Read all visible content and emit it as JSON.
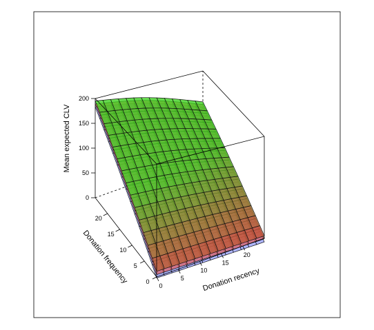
{
  "chart_data": {
    "type": "surface3d",
    "title": "",
    "xlabel": "Donation recency",
    "ylabel": "Donation frequency",
    "zlabel": "Mean expected CLV",
    "xlim": [
      0,
      25
    ],
    "ylim": [
      0,
      25
    ],
    "zlim": [
      0,
      200
    ],
    "x_ticks": [
      0,
      5,
      10,
      15,
      20
    ],
    "y_ticks": [
      0,
      5,
      10,
      15,
      20
    ],
    "z_ticks": [
      0,
      50,
      100,
      150,
      200
    ],
    "grid": true,
    "corner_values": {
      "recency_0_frequency_0": 10,
      "recency_25_frequency_0": 5,
      "recency_0_frequency_25": 195,
      "recency_25_frequency_25": 130
    },
    "series": [
      {
        "color": "#3cd21e",
        "top_color": "#3cd21e",
        "bottom_color": "#d2463c",
        "z_offset": 0
      },
      {
        "color": "#dc5a5a",
        "z_offset": -6
      },
      {
        "color": "#8c96ff",
        "z_offset": -12
      }
    ]
  }
}
